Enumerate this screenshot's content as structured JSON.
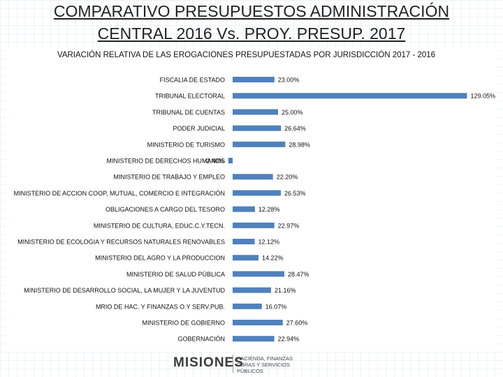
{
  "slide": {
    "title_line1": "COMPARATIVO PRESUPUESTOS ADMINISTRACIÓN",
    "title_line2": "CENTRAL 2016 Vs. PROY. PRESUP. 2017"
  },
  "logo": {
    "word": "MISIONES",
    "line1": "HACIENDA, FINANZAS",
    "line2": "OBRAS Y SERVICIOS PÚBLICOS"
  },
  "colors": {
    "bar": "#4f81bd",
    "text": "#111111"
  },
  "chart_data": {
    "type": "bar",
    "orientation": "horizontal",
    "title": "VARIACIÓN RELATIVA DE LAS EROGACIONES PRESUPUESTADAS POR JURISDICCIÓN 2017 - 2016",
    "xlabel": "",
    "ylabel": "",
    "xlim": [
      -3,
      130
    ],
    "grid": false,
    "legend": "none",
    "categories": [
      "FISCALIA DE ESTADO",
      "TRIBUNAL ELECTORAL",
      "TRIBUNAL DE CUENTAS",
      "PODER JUDICIAL",
      "MINISTERIO DE TURISMO",
      "MINISTERIO DE DERECHOS HUMANOS",
      "MINISTERIO DE TRABAJO Y EMPLEO",
      "MINISTERIO DE ACCION COOP, MUTUAL, COMERCIO E INTEGRACIÓN",
      "OBLIGACIONES A CARGO DEL TESORO",
      "MINISTERIO DE CULTURA, EDUC.C.Y.TECN.",
      "MINISTERIO DE ECOLOGIA Y RECURSOS NATURALES RENOVABLES",
      "MINISTERIO DEL AGRO Y LA PRODUCCION",
      "MINISTERIO DE SALUD PÚBLICA",
      "MINISTERIO DE DESARROLLO SOCIAL, LA MUJER Y LA JUVENTUD",
      "MRIO DE HAC. Y FINANZAS O.Y SERV.PUB.",
      "MINISTERIO DE GOBIERNO",
      "GOBERNACIÓN"
    ],
    "values": [
      23.0,
      129.05,
      25.0,
      26.64,
      28.98,
      -2.4,
      22.2,
      26.53,
      12.28,
      22.97,
      12.12,
      14.22,
      28.47,
      21.16,
      16.07,
      27.6,
      22.94
    ],
    "labels": [
      "23.00%",
      "129.05%",
      "25.00%",
      "26.64%",
      "28.98%",
      "-2.40%",
      "22.20%",
      "26.53%",
      "12.28%",
      "22.97%",
      "12.12%",
      "14.22%",
      "28.47%",
      "21.16%",
      "16.07%",
      "27.60%",
      "22.94%"
    ]
  }
}
